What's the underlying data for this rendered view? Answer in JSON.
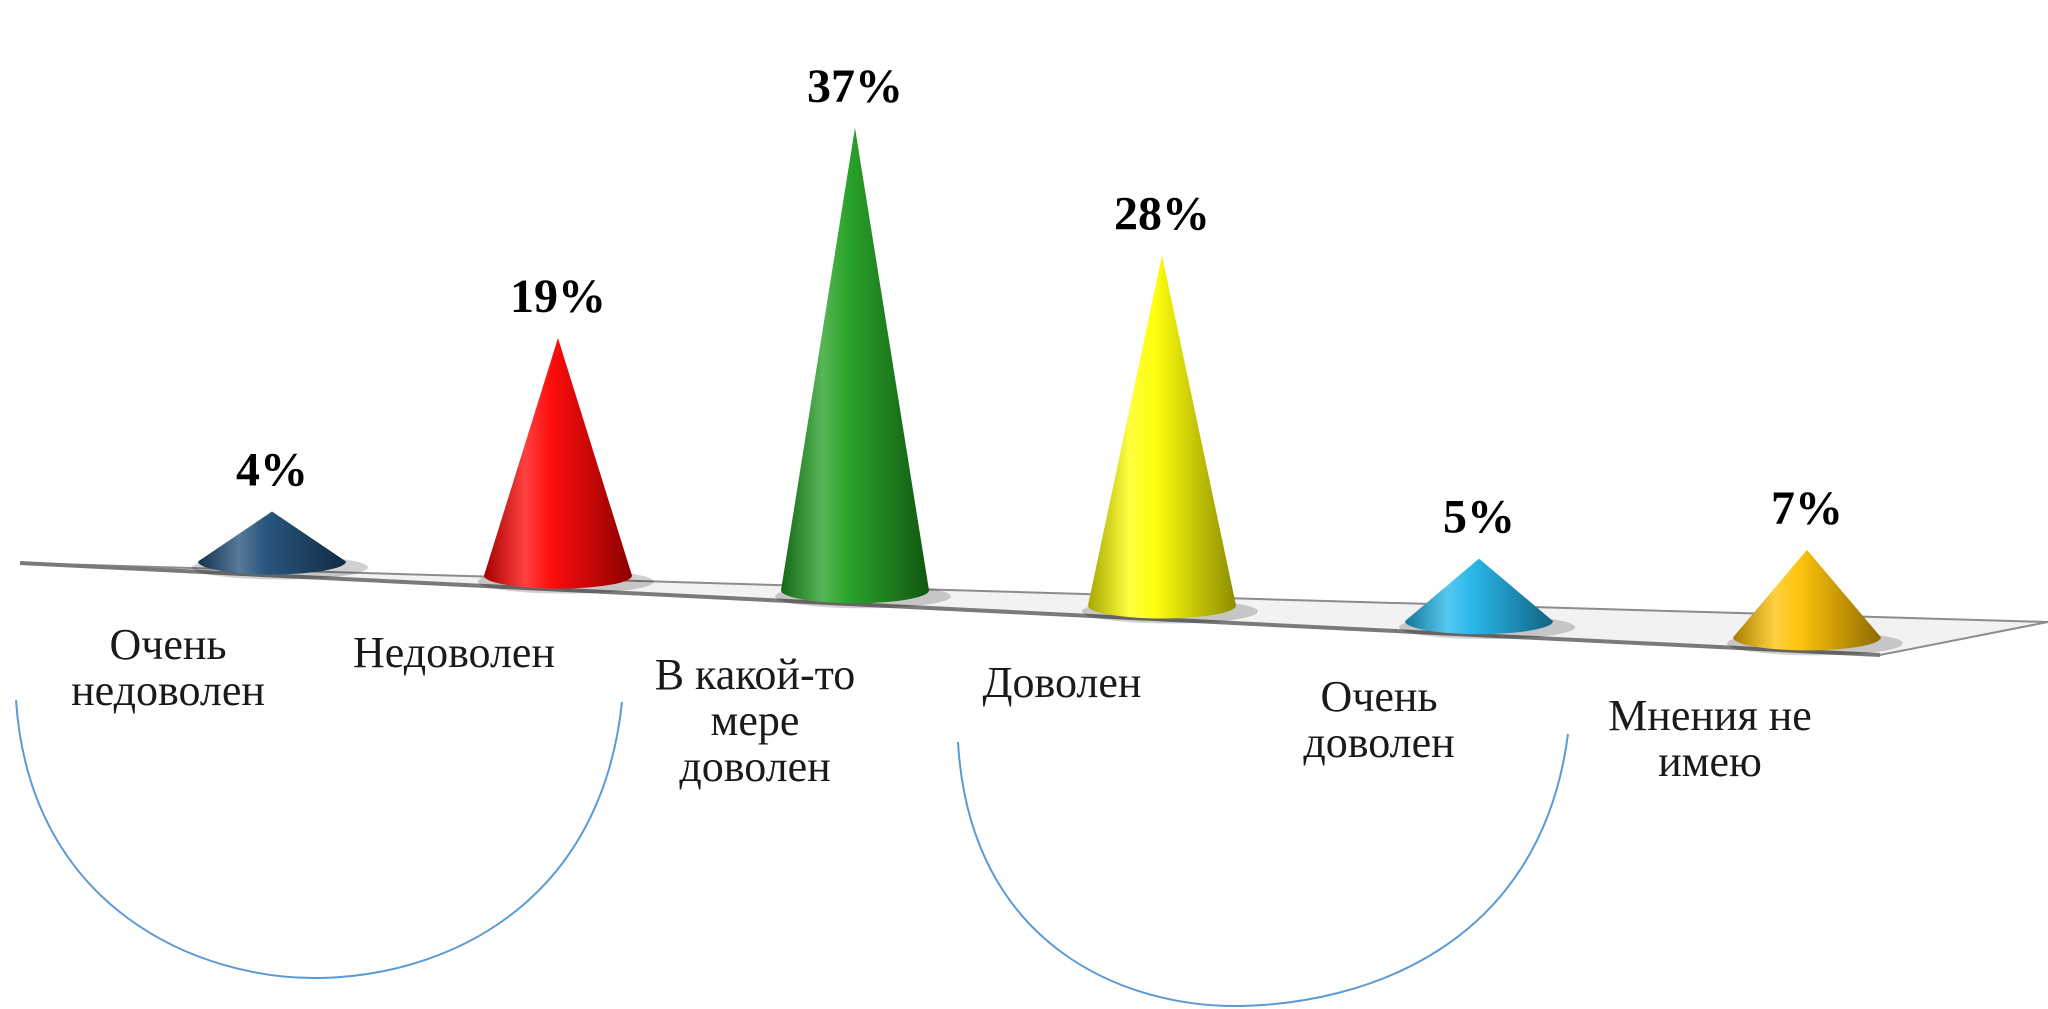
{
  "chart_data": {
    "type": "bar",
    "bar_shape": "cone",
    "perspective": "3d",
    "categories": [
      [
        "Очень",
        "недоволен"
      ],
      [
        "Недоволен"
      ],
      [
        "В какой-то",
        "мере",
        "доволен"
      ],
      [
        "Доволен"
      ],
      [
        "Очень",
        "доволен"
      ],
      [
        "Мнения не",
        "имею"
      ]
    ],
    "values": [
      4,
      19,
      37,
      28,
      5,
      7
    ],
    "data_labels": [
      "4%",
      "19%",
      "37%",
      "28%",
      "5%",
      "7%"
    ],
    "unit": "%",
    "colors": [
      "#1f4e79",
      "#ff0000",
      "#1f9e1f",
      "#ffff00",
      "#1fb4ea",
      "#ffc000"
    ],
    "grouping_arc_color": "#5b9bd5",
    "title": "",
    "xlabel": "",
    "ylabel": "",
    "grid": false,
    "legend": "none"
  }
}
